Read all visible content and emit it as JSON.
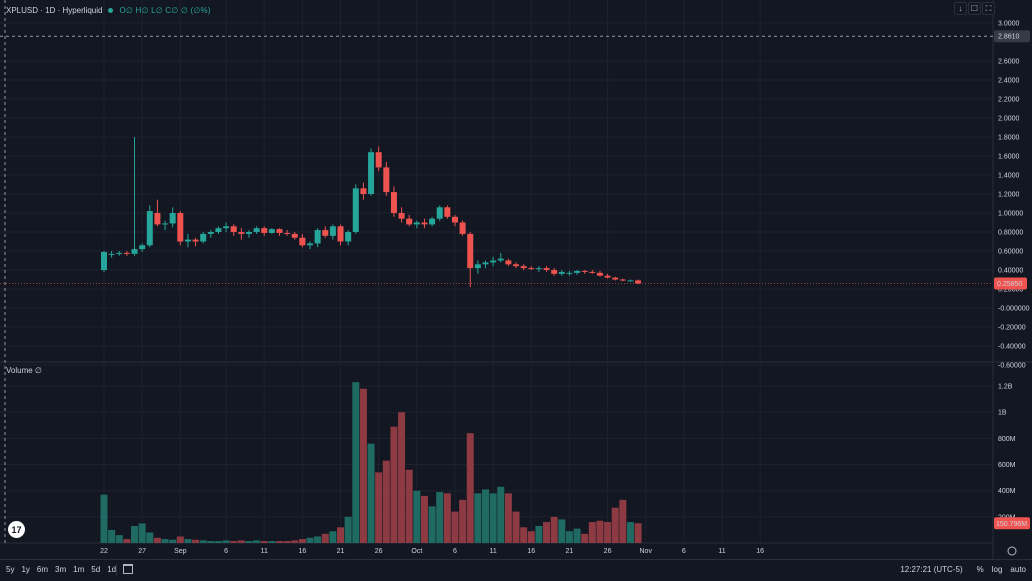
{
  "header": {
    "symbol_line": "XPLUSD · 1D · Hyperliquid",
    "ohlc": "O∅ H∅ L∅ C∅ ∅ (∅%)",
    "volume_label": "Volume  ∅"
  },
  "window_buttons": [
    "↓",
    "☐",
    "⛶"
  ],
  "price_axis": {
    "ticks": [
      "3.0000",
      "2.6000",
      "2.4000",
      "2.2000",
      "2.0000",
      "1.8000",
      "1.6000",
      "1.4000",
      "1.2000",
      "1.00000",
      "0.80000",
      "0.60000",
      "0.40000",
      "0.20000",
      "-0.000000",
      "-0.20000",
      "-0.40000",
      "-0.60000"
    ],
    "tick_values": [
      3.0,
      2.6,
      2.4,
      2.2,
      2.0,
      1.8,
      1.6,
      1.4,
      1.2,
      1.0,
      0.8,
      0.6,
      0.4,
      0.2,
      0.0,
      -0.2,
      -0.4,
      -0.6
    ],
    "crosshair_label": "2.8610",
    "crosshair_value": 2.861,
    "last_price_label": "0.25850",
    "last_price_value": 0.2585
  },
  "volume_axis": {
    "ticks": [
      "1.2B",
      "1B",
      "800M",
      "600M",
      "400M",
      "200M"
    ],
    "tick_values": [
      1200,
      1000,
      800,
      600,
      400,
      200
    ],
    "last_volume_label": "150.796M",
    "last_volume_value": 150.796
  },
  "date_labels": [
    {
      "label": "22",
      "index": 0
    },
    {
      "label": "27",
      "index": 5
    },
    {
      "label": "Sep",
      "index": 10
    },
    {
      "label": "6",
      "index": 16
    },
    {
      "label": "11",
      "index": 21
    },
    {
      "label": "16",
      "index": 26
    },
    {
      "label": "21",
      "index": 31
    },
    {
      "label": "26",
      "index": 36
    },
    {
      "label": "Oct",
      "index": 41
    },
    {
      "label": "6",
      "index": 46
    },
    {
      "label": "11",
      "index": 51
    },
    {
      "label": "16",
      "index": 56
    },
    {
      "label": "21",
      "index": 61
    },
    {
      "label": "26",
      "index": 66
    },
    {
      "label": "Nov",
      "index": 71
    },
    {
      "label": "6",
      "index": 76
    },
    {
      "label": "11",
      "index": 81
    },
    {
      "label": "16",
      "index": 86
    }
  ],
  "bottom_bar": {
    "ranges": [
      "5y",
      "1y",
      "6m",
      "3m",
      "1m",
      "5d",
      "1d"
    ],
    "time": "12:27:21 (UTC-5)",
    "percent": "%",
    "log": "log",
    "auto": "auto"
  },
  "colors": {
    "up": "#26a69a",
    "down": "#ef5350",
    "up_volume": "#1f6b63",
    "down_volume": "#8e3a42",
    "background": "#131722",
    "grid": "#1e222d"
  },
  "chart_data": {
    "type": "candlestick",
    "timeframe": "1D",
    "candles": [
      {
        "o": 0.4,
        "h": 0.6,
        "l": 0.38,
        "c": 0.59,
        "v": 370
      },
      {
        "o": 0.57,
        "h": 0.6,
        "l": 0.53,
        "c": 0.57,
        "v": 100
      },
      {
        "o": 0.57,
        "h": 0.6,
        "l": 0.55,
        "c": 0.58,
        "v": 60
      },
      {
        "o": 0.58,
        "h": 0.6,
        "l": 0.55,
        "c": 0.57,
        "v": 30
      },
      {
        "o": 0.57,
        "h": 1.8,
        "l": 0.55,
        "c": 0.62,
        "v": 130
      },
      {
        "o": 0.62,
        "h": 0.68,
        "l": 0.59,
        "c": 0.66,
        "v": 150
      },
      {
        "o": 0.66,
        "h": 1.08,
        "l": 0.64,
        "c": 1.02,
        "v": 80
      },
      {
        "o": 1.0,
        "h": 1.14,
        "l": 0.86,
        "c": 0.88,
        "v": 40
      },
      {
        "o": 0.88,
        "h": 0.92,
        "l": 0.82,
        "c": 0.89,
        "v": 30
      },
      {
        "o": 0.89,
        "h": 1.06,
        "l": 0.85,
        "c": 1.0,
        "v": 25
      },
      {
        "o": 1.0,
        "h": 1.02,
        "l": 0.66,
        "c": 0.7,
        "v": 50
      },
      {
        "o": 0.7,
        "h": 0.78,
        "l": 0.64,
        "c": 0.72,
        "v": 30
      },
      {
        "o": 0.72,
        "h": 0.74,
        "l": 0.65,
        "c": 0.7,
        "v": 25
      },
      {
        "o": 0.7,
        "h": 0.8,
        "l": 0.68,
        "c": 0.78,
        "v": 20
      },
      {
        "o": 0.78,
        "h": 0.82,
        "l": 0.74,
        "c": 0.8,
        "v": 15
      },
      {
        "o": 0.8,
        "h": 0.86,
        "l": 0.78,
        "c": 0.84,
        "v": 15
      },
      {
        "o": 0.84,
        "h": 0.9,
        "l": 0.8,
        "c": 0.86,
        "v": 20
      },
      {
        "o": 0.86,
        "h": 0.88,
        "l": 0.76,
        "c": 0.8,
        "v": 15
      },
      {
        "o": 0.8,
        "h": 0.84,
        "l": 0.72,
        "c": 0.78,
        "v": 20
      },
      {
        "o": 0.78,
        "h": 0.82,
        "l": 0.74,
        "c": 0.8,
        "v": 15
      },
      {
        "o": 0.8,
        "h": 0.86,
        "l": 0.78,
        "c": 0.84,
        "v": 20
      },
      {
        "o": 0.84,
        "h": 0.86,
        "l": 0.76,
        "c": 0.79,
        "v": 15
      },
      {
        "o": 0.79,
        "h": 0.84,
        "l": 0.78,
        "c": 0.83,
        "v": 15
      },
      {
        "o": 0.83,
        "h": 0.84,
        "l": 0.76,
        "c": 0.79,
        "v": 15
      },
      {
        "o": 0.79,
        "h": 0.82,
        "l": 0.76,
        "c": 0.78,
        "v": 15
      },
      {
        "o": 0.78,
        "h": 0.8,
        "l": 0.72,
        "c": 0.74,
        "v": 20
      },
      {
        "o": 0.74,
        "h": 0.78,
        "l": 0.64,
        "c": 0.66,
        "v": 30
      },
      {
        "o": 0.66,
        "h": 0.7,
        "l": 0.62,
        "c": 0.68,
        "v": 40
      },
      {
        "o": 0.68,
        "h": 0.84,
        "l": 0.64,
        "c": 0.82,
        "v": 50
      },
      {
        "o": 0.82,
        "h": 0.86,
        "l": 0.74,
        "c": 0.76,
        "v": 70
      },
      {
        "o": 0.76,
        "h": 0.88,
        "l": 0.72,
        "c": 0.86,
        "v": 90
      },
      {
        "o": 0.86,
        "h": 0.88,
        "l": 0.66,
        "c": 0.7,
        "v": 120
      },
      {
        "o": 0.7,
        "h": 0.82,
        "l": 0.66,
        "c": 0.8,
        "v": 200
      },
      {
        "o": 0.8,
        "h": 1.3,
        "l": 0.78,
        "c": 1.26,
        "v": 1230
      },
      {
        "o": 1.26,
        "h": 1.32,
        "l": 1.14,
        "c": 1.2,
        "v": 1180
      },
      {
        "o": 1.2,
        "h": 1.68,
        "l": 1.18,
        "c": 1.64,
        "v": 760
      },
      {
        "o": 1.64,
        "h": 1.7,
        "l": 1.44,
        "c": 1.48,
        "v": 540
      },
      {
        "o": 1.48,
        "h": 1.54,
        "l": 1.18,
        "c": 1.22,
        "v": 630
      },
      {
        "o": 1.22,
        "h": 1.28,
        "l": 0.96,
        "c": 1.0,
        "v": 890
      },
      {
        "o": 1.0,
        "h": 1.06,
        "l": 0.9,
        "c": 0.94,
        "v": 1000
      },
      {
        "o": 0.94,
        "h": 0.98,
        "l": 0.86,
        "c": 0.88,
        "v": 560
      },
      {
        "o": 0.88,
        "h": 0.92,
        "l": 0.84,
        "c": 0.9,
        "v": 400
      },
      {
        "o": 0.9,
        "h": 0.94,
        "l": 0.84,
        "c": 0.88,
        "v": 360
      },
      {
        "o": 0.88,
        "h": 0.96,
        "l": 0.86,
        "c": 0.94,
        "v": 280
      },
      {
        "o": 0.94,
        "h": 1.08,
        "l": 0.92,
        "c": 1.06,
        "v": 390
      },
      {
        "o": 1.06,
        "h": 1.08,
        "l": 0.94,
        "c": 0.96,
        "v": 380
      },
      {
        "o": 0.96,
        "h": 0.98,
        "l": 0.86,
        "c": 0.9,
        "v": 240
      },
      {
        "o": 0.9,
        "h": 0.92,
        "l": 0.76,
        "c": 0.78,
        "v": 330
      },
      {
        "o": 0.78,
        "h": 0.8,
        "l": 0.22,
        "c": 0.42,
        "v": 840
      },
      {
        "o": 0.42,
        "h": 0.5,
        "l": 0.36,
        "c": 0.46,
        "v": 380
      },
      {
        "o": 0.46,
        "h": 0.5,
        "l": 0.42,
        "c": 0.48,
        "v": 410
      },
      {
        "o": 0.48,
        "h": 0.54,
        "l": 0.44,
        "c": 0.5,
        "v": 380
      },
      {
        "o": 0.5,
        "h": 0.58,
        "l": 0.48,
        "c": 0.52,
        "v": 430
      },
      {
        "o": 0.5,
        "h": 0.52,
        "l": 0.44,
        "c": 0.46,
        "v": 380
      },
      {
        "o": 0.46,
        "h": 0.48,
        "l": 0.42,
        "c": 0.44,
        "v": 240
      },
      {
        "o": 0.44,
        "h": 0.46,
        "l": 0.4,
        "c": 0.42,
        "v": 120
      },
      {
        "o": 0.42,
        "h": 0.44,
        "l": 0.4,
        "c": 0.41,
        "v": 90
      },
      {
        "o": 0.41,
        "h": 0.44,
        "l": 0.38,
        "c": 0.42,
        "v": 130
      },
      {
        "o": 0.42,
        "h": 0.44,
        "l": 0.38,
        "c": 0.4,
        "v": 160
      },
      {
        "o": 0.4,
        "h": 0.42,
        "l": 0.34,
        "c": 0.36,
        "v": 200
      },
      {
        "o": 0.36,
        "h": 0.4,
        "l": 0.34,
        "c": 0.38,
        "v": 180
      },
      {
        "o": 0.36,
        "h": 0.39,
        "l": 0.34,
        "c": 0.37,
        "v": 90
      },
      {
        "o": 0.37,
        "h": 0.4,
        "l": 0.35,
        "c": 0.39,
        "v": 110
      },
      {
        "o": 0.39,
        "h": 0.4,
        "l": 0.36,
        "c": 0.38,
        "v": 70
      },
      {
        "o": 0.38,
        "h": 0.4,
        "l": 0.36,
        "c": 0.37,
        "v": 160
      },
      {
        "o": 0.37,
        "h": 0.39,
        "l": 0.33,
        "c": 0.34,
        "v": 170
      },
      {
        "o": 0.34,
        "h": 0.36,
        "l": 0.31,
        "c": 0.32,
        "v": 160
      },
      {
        "o": 0.32,
        "h": 0.33,
        "l": 0.29,
        "c": 0.3,
        "v": 270
      },
      {
        "o": 0.3,
        "h": 0.31,
        "l": 0.28,
        "c": 0.29,
        "v": 330
      },
      {
        "o": 0.29,
        "h": 0.3,
        "l": 0.28,
        "c": 0.29,
        "v": 160
      },
      {
        "o": 0.29,
        "h": 0.3,
        "l": 0.25,
        "c": 0.2585,
        "v": 150.796
      }
    ]
  }
}
